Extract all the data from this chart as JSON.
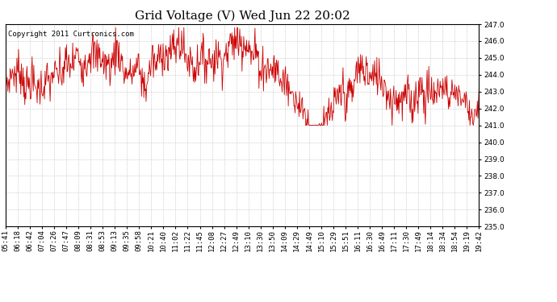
{
  "title": "Grid Voltage (V) Wed Jun 22 20:02",
  "copyright": "Copyright 2011 Curtronics.com",
  "line_color": "#cc0000",
  "bg_color": "#ffffff",
  "plot_bg_color": "#ffffff",
  "grid_color": "#bbbbbb",
  "ylim": [
    235.0,
    247.0
  ],
  "yticks": [
    235.0,
    236.0,
    237.0,
    238.0,
    239.0,
    240.0,
    241.0,
    242.0,
    243.0,
    244.0,
    245.0,
    246.0,
    247.0
  ],
  "xtick_labels": [
    "05:41",
    "06:18",
    "06:42",
    "07:04",
    "07:26",
    "07:47",
    "08:09",
    "08:31",
    "08:53",
    "09:13",
    "09:35",
    "09:58",
    "10:21",
    "10:40",
    "11:02",
    "11:22",
    "11:45",
    "12:08",
    "12:27",
    "12:49",
    "13:10",
    "13:30",
    "13:50",
    "14:09",
    "14:29",
    "14:49",
    "15:10",
    "15:29",
    "15:51",
    "16:11",
    "16:30",
    "16:49",
    "17:11",
    "17:30",
    "17:49",
    "18:14",
    "18:34",
    "18:54",
    "19:19",
    "19:42"
  ],
  "line_width": 0.6,
  "title_fontsize": 11,
  "tick_fontsize": 6.5,
  "copyright_fontsize": 6.5,
  "figsize": [
    6.9,
    3.75
  ],
  "dpi": 100
}
